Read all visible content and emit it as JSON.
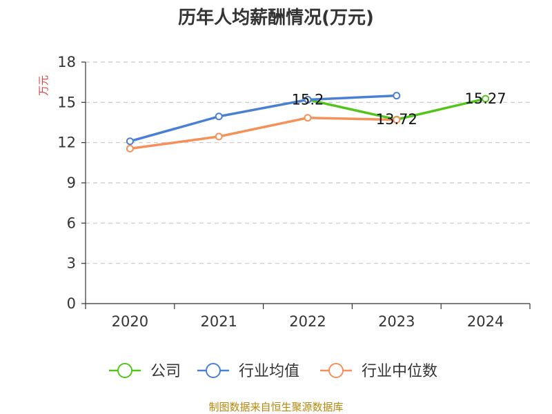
{
  "chart_data": {
    "type": "line",
    "title": "历年人均薪酬情况(万元)",
    "ylabel": "万元",
    "categories": [
      "2020",
      "2021",
      "2022",
      "2023",
      "2024"
    ],
    "ylim": [
      0,
      18
    ],
    "yticks": [
      0,
      3,
      6,
      9,
      12,
      15,
      18
    ],
    "grid": true,
    "legend_position": "bottom",
    "series": [
      {
        "name": "公司",
        "color": "#52c41a",
        "values": [
          null,
          null,
          15.2,
          13.72,
          15.27
        ],
        "labels": [
          null,
          null,
          "15.2",
          "13.72",
          "15.27"
        ]
      },
      {
        "name": "行业均值",
        "color": "#4a7fd6",
        "values": [
          12.1,
          13.95,
          15.2,
          15.5,
          null
        ],
        "labels": [
          null,
          null,
          null,
          null,
          null
        ]
      },
      {
        "name": "行业中位数",
        "color": "#f59058",
        "values": [
          11.55,
          12.45,
          13.85,
          13.7,
          null
        ],
        "labels": [
          null,
          null,
          null,
          null,
          null
        ]
      }
    ]
  },
  "source": "制图数据来自恒生聚源数据库"
}
